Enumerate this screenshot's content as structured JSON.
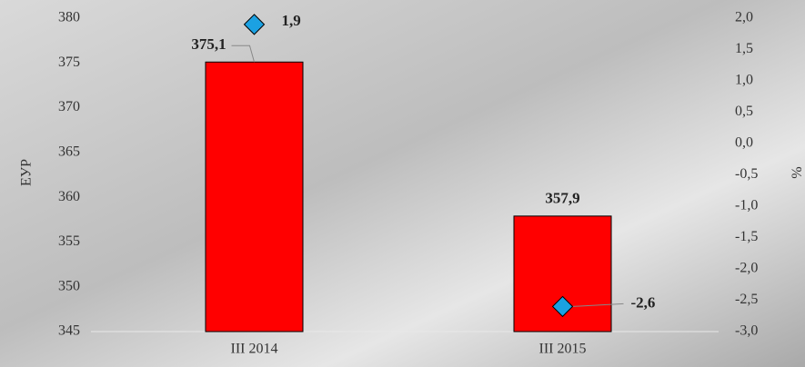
{
  "chart_data": {
    "type": "bar",
    "categories": [
      "III 2014",
      "III 2015"
    ],
    "series": [
      {
        "type": "bar",
        "color": "#ff0000",
        "values": [
          375.1,
          357.9
        ],
        "value_labels": [
          "375,1",
          "357,9"
        ]
      },
      {
        "type": "scatter",
        "axis": "y2",
        "color": "#1ba1e2",
        "values": [
          1.9,
          -2.6
        ],
        "value_labels": [
          "1,9",
          "-2,6"
        ]
      }
    ],
    "ylabel": "ЕУР",
    "y2label": "%",
    "ylim": [
      345,
      380
    ],
    "yticks": [
      345,
      350,
      355,
      360,
      365,
      370,
      375,
      380
    ],
    "y2lim": [
      -3.0,
      2.0
    ],
    "y2ticks": [
      {
        "value": -3.0,
        "label": "-3,0"
      },
      {
        "value": -2.5,
        "label": "-2,5"
      },
      {
        "value": -2.0,
        "label": "-2,0"
      },
      {
        "value": -1.5,
        "label": "-1,5"
      },
      {
        "value": -1.0,
        "label": "-1,0"
      },
      {
        "value": -0.5,
        "label": "-0,5"
      },
      {
        "value": 0.0,
        "label": "0,0"
      },
      {
        "value": 0.5,
        "label": "0,5"
      },
      {
        "value": 1.0,
        "label": "1,0"
      },
      {
        "value": 1.5,
        "label": "1,5"
      },
      {
        "value": 2.0,
        "label": "2,0"
      }
    ],
    "grid": false
  }
}
